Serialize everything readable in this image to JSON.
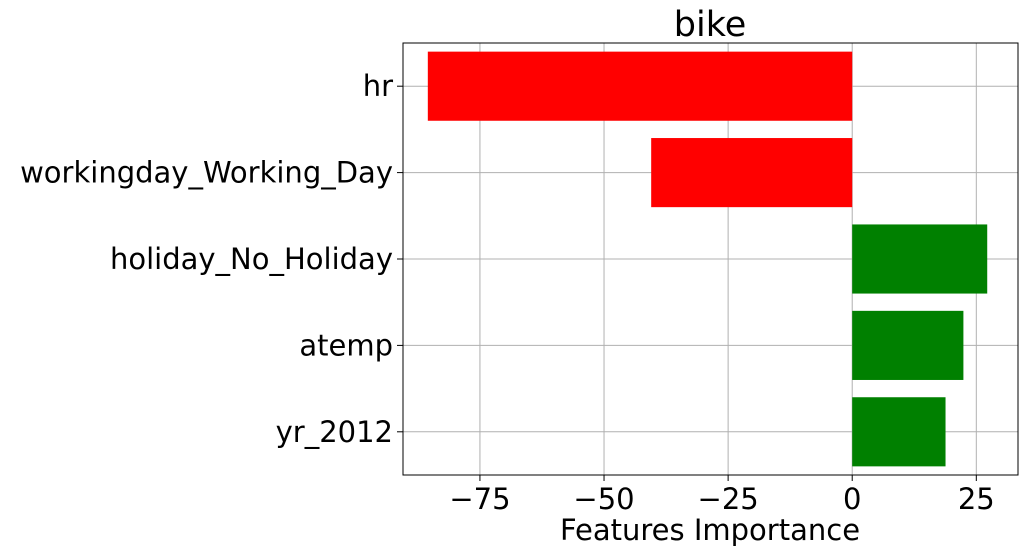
{
  "chart_data": {
    "type": "bar",
    "orientation": "horizontal",
    "title": "bike",
    "xlabel": "Features Importance",
    "ylabel": "",
    "categories": [
      "hr",
      "workingday_Working_Day",
      "holiday_No_Holiday",
      "atemp",
      "yr_2012"
    ],
    "values": [
      -85.5,
      -40.5,
      27.2,
      22.4,
      18.8
    ],
    "xlim": [
      -90.5,
      33.4
    ],
    "xticks": [
      -75,
      -50,
      -25,
      0,
      25
    ],
    "xtick_labels": [
      "−75",
      "−50",
      "−25",
      "0",
      "25"
    ],
    "grid": true,
    "colors": {
      "negative": "#ff0000",
      "positive": "#008000"
    }
  }
}
